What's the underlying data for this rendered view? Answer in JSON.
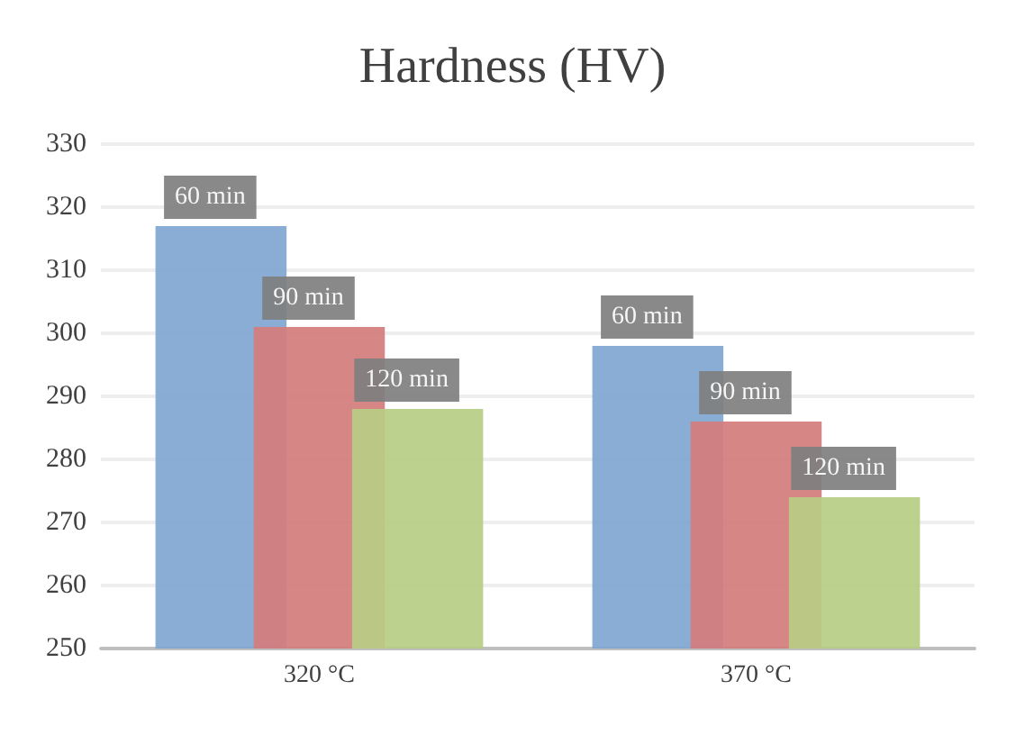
{
  "chart_data": {
    "type": "bar",
    "title": "Hardness (HV)",
    "categories": [
      "320 °C",
      "370 °C"
    ],
    "series": [
      {
        "name": "60 min",
        "color": "#7fa6d1",
        "values": [
          317,
          298
        ]
      },
      {
        "name": "90 min",
        "color": "#d47c7c",
        "values": [
          301,
          286
        ]
      },
      {
        "name": "120 min",
        "color": "#b7cd85",
        "values": [
          288,
          274
        ]
      }
    ],
    "ylim": [
      250,
      330
    ],
    "yticks": [
      250,
      260,
      270,
      280,
      290,
      300,
      310,
      320,
      330
    ],
    "grid": "y",
    "legend": false
  }
}
